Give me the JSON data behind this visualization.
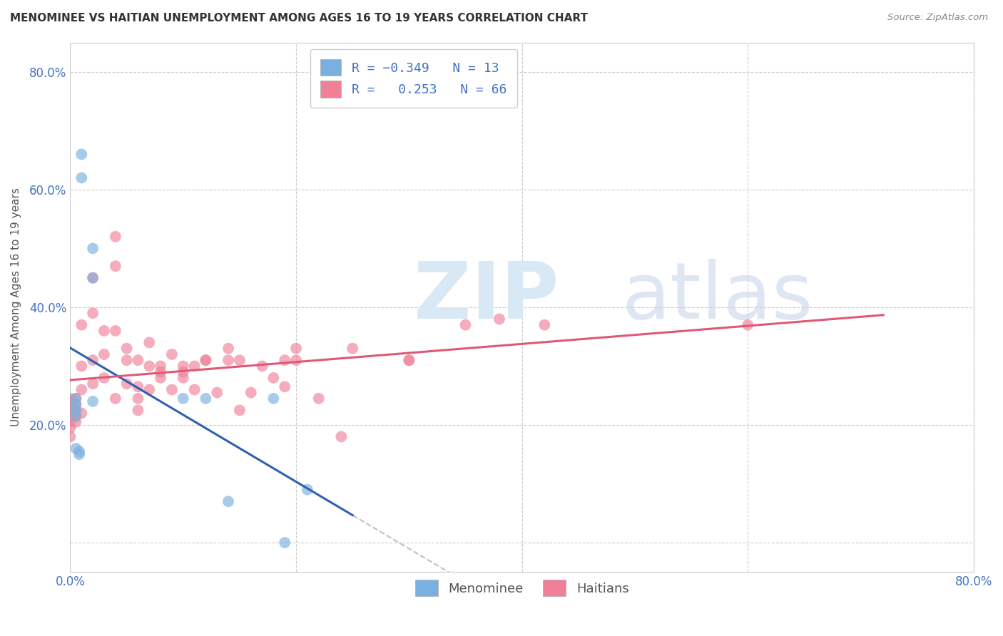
{
  "title": "MENOMINEE VS HAITIAN UNEMPLOYMENT AMONG AGES 16 TO 19 YEARS CORRELATION CHART",
  "source": "Source: ZipAtlas.com",
  "ylabel": "Unemployment Among Ages 16 to 19 years",
  "xlim": [
    0.0,
    0.8
  ],
  "ylim": [
    -0.05,
    0.85
  ],
  "xtick_positions": [
    0.0,
    0.2,
    0.4,
    0.6,
    0.8
  ],
  "ytick_positions": [
    0.0,
    0.2,
    0.4,
    0.6,
    0.8
  ],
  "xticklabels": [
    "0.0%",
    "",
    "",
    "",
    "80.0%"
  ],
  "yticklabels": [
    "",
    "20.0%",
    "40.0%",
    "60.0%",
    "80.0%"
  ],
  "menominee_color": "#7ab0df",
  "haitian_color": "#f08098",
  "menominee_line_color": "#3060b0",
  "haitian_line_color": "#e05878",
  "background_color": "#ffffff",
  "grid_color": "#cccccc",
  "menominee_x": [
    0.005,
    0.005,
    0.005,
    0.005,
    0.005,
    0.008,
    0.008,
    0.01,
    0.01,
    0.02,
    0.02,
    0.02,
    0.1,
    0.12,
    0.14,
    0.18,
    0.19,
    0.21
  ],
  "menominee_y": [
    0.245,
    0.235,
    0.225,
    0.215,
    0.16,
    0.155,
    0.15,
    0.66,
    0.62,
    0.5,
    0.45,
    0.24,
    0.245,
    0.245,
    0.07,
    0.245,
    0.0,
    0.09
  ],
  "haitian_x": [
    0.0,
    0.0,
    0.0,
    0.0,
    0.0,
    0.0,
    0.0,
    0.005,
    0.005,
    0.005,
    0.005,
    0.005,
    0.01,
    0.01,
    0.01,
    0.01,
    0.02,
    0.02,
    0.02,
    0.02,
    0.03,
    0.03,
    0.03,
    0.04,
    0.04,
    0.04,
    0.04,
    0.05,
    0.05,
    0.05,
    0.06,
    0.06,
    0.06,
    0.06,
    0.07,
    0.07,
    0.07,
    0.08,
    0.08,
    0.08,
    0.09,
    0.09,
    0.1,
    0.1,
    0.1,
    0.11,
    0.11,
    0.12,
    0.12,
    0.13,
    0.14,
    0.14,
    0.15,
    0.15,
    0.16,
    0.17,
    0.18,
    0.19,
    0.19,
    0.2,
    0.2,
    0.22,
    0.24,
    0.25,
    0.3,
    0.3,
    0.35,
    0.38,
    0.42,
    0.6
  ],
  "haitian_y": [
    0.245,
    0.235,
    0.225,
    0.215,
    0.205,
    0.195,
    0.18,
    0.245,
    0.235,
    0.225,
    0.215,
    0.205,
    0.37,
    0.3,
    0.26,
    0.22,
    0.45,
    0.39,
    0.31,
    0.27,
    0.36,
    0.32,
    0.28,
    0.52,
    0.47,
    0.36,
    0.245,
    0.27,
    0.33,
    0.31,
    0.245,
    0.265,
    0.225,
    0.31,
    0.3,
    0.34,
    0.26,
    0.28,
    0.29,
    0.3,
    0.32,
    0.26,
    0.28,
    0.3,
    0.29,
    0.3,
    0.26,
    0.31,
    0.31,
    0.255,
    0.33,
    0.31,
    0.225,
    0.31,
    0.255,
    0.3,
    0.28,
    0.31,
    0.265,
    0.33,
    0.31,
    0.245,
    0.18,
    0.33,
    0.31,
    0.31,
    0.37,
    0.38,
    0.37,
    0.37
  ]
}
